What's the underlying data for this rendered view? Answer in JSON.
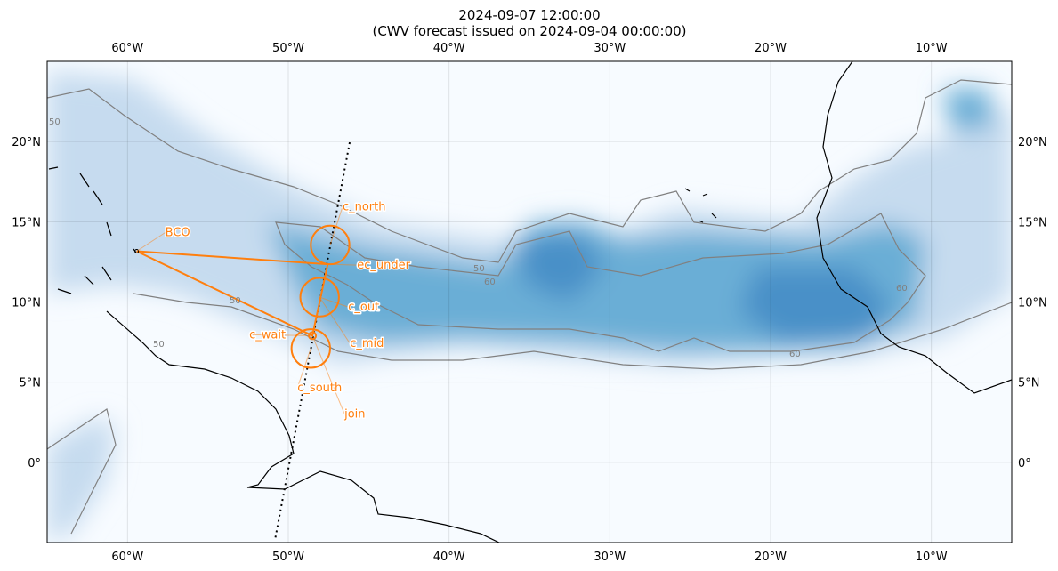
{
  "title": {
    "line1": "2024-09-07 12:00:00",
    "line2": "(CWV forecast issued on 2024-09-04 00:00:00)"
  },
  "map": {
    "extent": {
      "lon": [
        -65,
        -5
      ],
      "lat": [
        -5,
        25
      ]
    },
    "lon_ticks": [
      {
        "value": -60,
        "label": "60°W"
      },
      {
        "value": -50,
        "label": "50°W"
      },
      {
        "value": -40,
        "label": "40°W"
      },
      {
        "value": -30,
        "label": "30°W"
      },
      {
        "value": -20,
        "label": "20°W"
      },
      {
        "value": -10,
        "label": "10°W"
      }
    ],
    "lat_ticks": [
      {
        "value": 20,
        "label": "20°N"
      },
      {
        "value": 15,
        "label": "15°N"
      },
      {
        "value": 10,
        "label": "10°N"
      },
      {
        "value": 5,
        "label": "5°N"
      },
      {
        "value": 0,
        "label": "0°"
      }
    ],
    "contour_levels": [
      "50",
      "60"
    ],
    "colormap": "Blues",
    "contour_color": "#808080",
    "grid": true
  },
  "flight": {
    "color": "#ff7f0e",
    "points": {
      "BCO": {
        "lon": -59.43,
        "lat": 13.16,
        "label": "BCO"
      },
      "c_north": {
        "lon": -47.4,
        "lat": 13.55,
        "label": "c_north"
      },
      "c_out": {
        "lon": -48.05,
        "lat": 10.3,
        "label": "c_out"
      },
      "c_south": {
        "lon": -48.6,
        "lat": 7.1,
        "label": "c_south"
      },
      "c_wait": {
        "lon": -48.5,
        "lat": 7.9,
        "label": "c_wait"
      },
      "ec_under": {
        "lon": -47.55,
        "lat": 12.35,
        "label": "ec_under"
      },
      "c_mid": {
        "lon": -48.05,
        "lat": 10.3,
        "label": "c_mid"
      },
      "join": {
        "lon": -48.5,
        "lat": 7.9,
        "label": "join"
      }
    },
    "circle_radius_deg": 1.2,
    "ec_track": {
      "start": {
        "lon": -46.18,
        "lat": 19.95
      },
      "end": {
        "lon": -50.83,
        "lat": -4.84
      }
    }
  }
}
